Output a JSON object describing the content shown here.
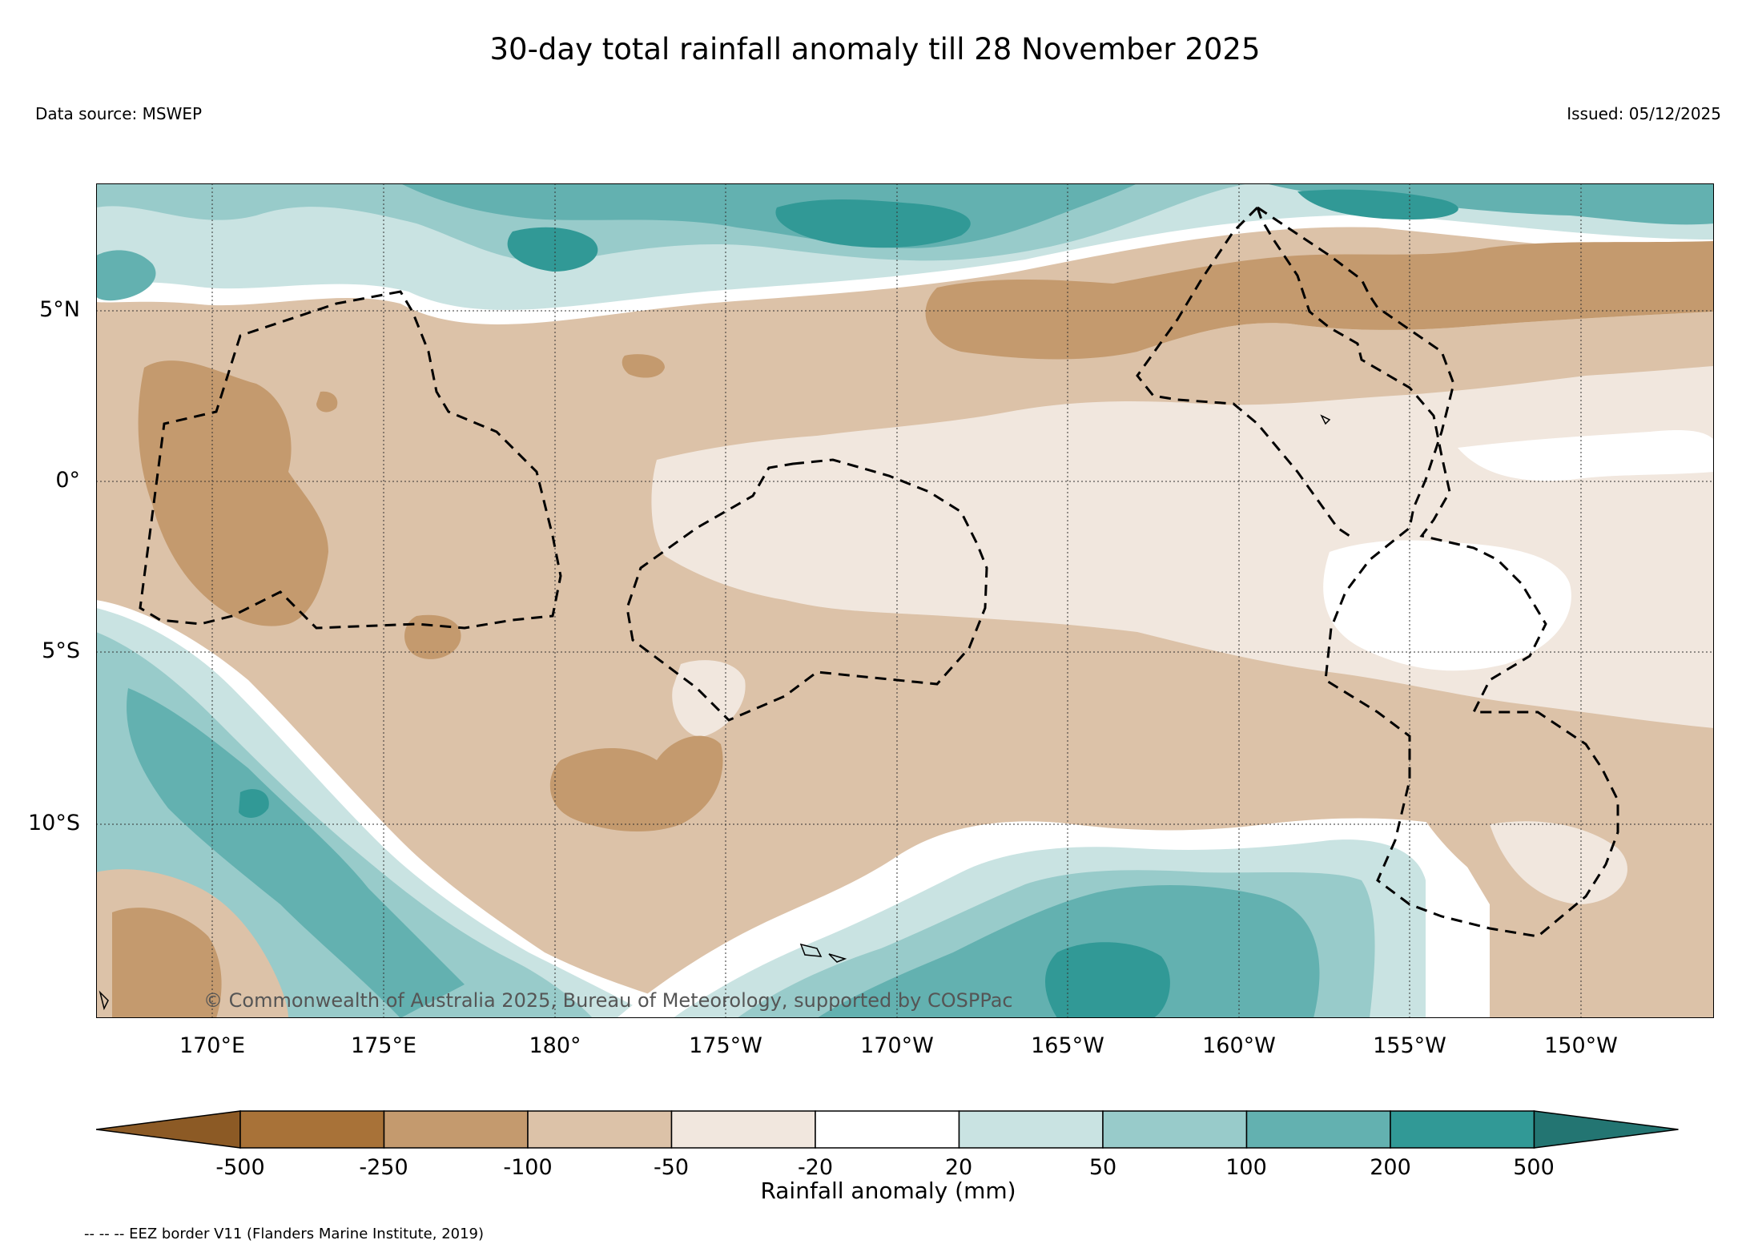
{
  "title": "30-day total rainfall anomaly till 28 November 2025",
  "data_source": "Data source: MSWEP",
  "issued": "Issued: 05/12/2025",
  "copyright": "© Commonwealth of Australia 2025, Bureau of Meteorology, supported by COSPPac",
  "lat_ticks": [
    "5°N",
    "0°",
    "5°S",
    "10°S"
  ],
  "lon_ticks": [
    "170°E",
    "175°E",
    "180°",
    "175°W",
    "170°W",
    "165°W",
    "160°W",
    "155°W",
    "150°W"
  ],
  "colorbar": {
    "label": "Rainfall anomaly (mm)",
    "ticks": [
      "-500",
      "-250",
      "-100",
      "-50",
      "-20",
      "20",
      "50",
      "100",
      "200",
      "500"
    ],
    "colors": [
      "#8c5a25",
      "#a87238",
      "#c49a6e",
      "#dcc2a8",
      "#f1e7de",
      "#ffffff",
      "#c9e3e2",
      "#98cbca",
      "#63b1b0",
      "#319996",
      "#237572"
    ]
  },
  "legend_note": "-- -- -- EEZ border V11 (Flanders Marine Institute, 2019)"
}
